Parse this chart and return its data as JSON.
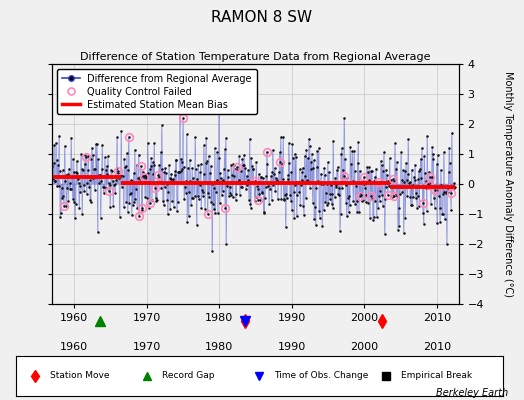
{
  "title": "RAMON 8 SW",
  "subtitle": "Difference of Station Temperature Data from Regional Average",
  "ylabel": "Monthly Temperature Anomaly Difference (°C)",
  "xlim": [
    1957,
    2013
  ],
  "ylim": [
    -4,
    4
  ],
  "yticks": [
    -4,
    -3,
    -2,
    -1,
    0,
    1,
    2,
    3,
    4
  ],
  "xticks": [
    1960,
    1970,
    1980,
    1990,
    2000,
    2010
  ],
  "fig_bg": "#f0f0f0",
  "plot_bg": "#f0f0f0",
  "line_color": "#3344cc",
  "marker_color": "#111111",
  "bias_color": "#ff0000",
  "qc_color": "#ff88bb",
  "grid_color": "#bbbbbb",
  "seed": 42,
  "n_points": 660,
  "start_year": 1957.0,
  "end_year": 2012.5,
  "noise_std": 0.7,
  "bias_segments": [
    {
      "x_start": 1957.0,
      "x_end": 1966.5,
      "bias": 0.25
    },
    {
      "x_start": 1966.5,
      "x_end": 2003.5,
      "bias": 0.05
    },
    {
      "x_start": 2003.5,
      "x_end": 2012.5,
      "bias": -0.1
    }
  ],
  "station_moves": [
    1983.5,
    2002.5
  ],
  "record_gaps": [
    1963.5
  ],
  "obs_changes": [
    1983.5
  ],
  "annotation": "Berkeley Earth"
}
